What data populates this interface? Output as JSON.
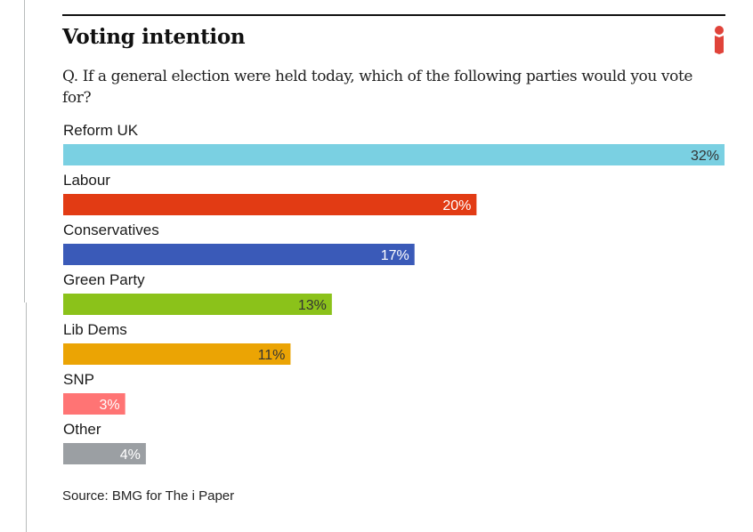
{
  "header": {
    "title": "Voting intention",
    "question": "Q. If a general election were held today, which of the following parties would you vote for?",
    "logo_icon": "i-paper-logo-icon",
    "logo_color": "#e0433a"
  },
  "footer": {
    "source": "Source: BMG for The i Paper"
  },
  "chart_data": {
    "type": "bar",
    "orientation": "horizontal",
    "title": "Voting intention",
    "subtitle": "Q. If a general election were held today, which of the following parties would you vote for?",
    "xlabel": "",
    "ylabel": "",
    "unit": "%",
    "grid": false,
    "legend": "none",
    "xlim": [
      0,
      32
    ],
    "categories": [
      "Reform UK",
      "Labour",
      "Conservatives",
      "Green Party",
      "Lib Dems",
      "SNP",
      "Other"
    ],
    "values": [
      32,
      20,
      17,
      13,
      11,
      3,
      4
    ],
    "value_labels": [
      "32%",
      "20%",
      "17%",
      "13%",
      "11%",
      "3%",
      "4%"
    ],
    "colors": [
      "#7ad0e2",
      "#e23b14",
      "#3a5ab8",
      "#8bc21a",
      "#eba404",
      "#ff7474",
      "#9b9fa3"
    ],
    "label_colors": [
      "#333333",
      "#ffffff",
      "#ffffff",
      "#333333",
      "#333333",
      "#ffffff",
      "#ffffff"
    ],
    "source": "Source: BMG for The i Paper"
  }
}
